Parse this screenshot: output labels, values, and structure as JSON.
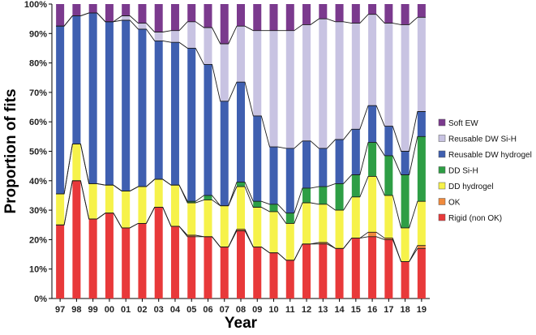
{
  "chart_data": {
    "type": "bar",
    "stacked": true,
    "normalized": true,
    "title": "",
    "xlabel": "Year",
    "ylabel": "Proportion of fits",
    "ylim": [
      0,
      100
    ],
    "y_ticks": [
      "0%",
      "10%",
      "20%",
      "30%",
      "40%",
      "50%",
      "60%",
      "70%",
      "80%",
      "90%",
      "100%"
    ],
    "categories": [
      "97",
      "98",
      "99",
      "00",
      "01",
      "02",
      "03",
      "04",
      "05",
      "06",
      "07",
      "08",
      "09",
      "10",
      "11",
      "12",
      "13",
      "14",
      "15",
      "16",
      "17",
      "18",
      "19"
    ],
    "legend_position": "right",
    "grid": false,
    "connector_lines": true,
    "series": [
      {
        "name": "Rigid (non OK)",
        "color": "#e8393a",
        "values": [
          25,
          40,
          27,
          29,
          24,
          25.5,
          31,
          24.5,
          21,
          21,
          17.5,
          23,
          17.5,
          15.5,
          13,
          18.5,
          18.5,
          17,
          20.5,
          21,
          20,
          12.5,
          17
        ]
      },
      {
        "name": "OK",
        "color": "#f08a3c",
        "values": [
          0,
          0,
          0,
          0,
          0,
          0,
          0,
          0,
          0.5,
          0,
          0,
          0.5,
          0,
          0,
          0,
          0,
          0.5,
          0,
          0,
          1.5,
          0.5,
          0,
          1
        ]
      },
      {
        "name": "DD hydrogel",
        "color": "#f6f24a",
        "values": [
          10.5,
          12.5,
          12,
          9.5,
          12.5,
          12.5,
          9.5,
          14,
          11,
          12.5,
          14,
          14.5,
          13.5,
          14,
          12.5,
          14,
          13,
          13,
          14,
          19,
          14.5,
          11.5,
          15
        ]
      },
      {
        "name": "DD Si-H",
        "color": "#2e9e45",
        "values": [
          0,
          0,
          0,
          0,
          0,
          0,
          0,
          0,
          0.5,
          1.5,
          0,
          1.5,
          2,
          2.5,
          3.5,
          5,
          6,
          9,
          7.5,
          11.5,
          13.5,
          18,
          22
        ]
      },
      {
        "name": "Reusable DW hydrogel",
        "color": "#3f5fb0",
        "values": [
          57,
          43.5,
          58,
          55.5,
          58,
          53.5,
          47,
          48.5,
          52,
          44.5,
          35.5,
          34,
          29,
          19.5,
          22,
          16,
          13,
          15,
          15.5,
          12.5,
          10,
          8,
          8.5
        ]
      },
      {
        "name": "Reusable DW Si-H",
        "color": "#c8c3e2",
        "values": [
          0,
          0,
          0,
          0,
          1.5,
          2,
          3,
          4,
          9,
          12.5,
          19.5,
          19,
          29,
          39.5,
          40,
          39.5,
          44,
          40,
          36,
          31,
          35,
          43,
          32
        ]
      },
      {
        "name": "Soft EW",
        "color": "#7b3a8e",
        "values": [
          7.5,
          4,
          3,
          6,
          4,
          6.5,
          9.5,
          9,
          6,
          8,
          13.5,
          7.5,
          9,
          9,
          9,
          7,
          5,
          6,
          6.5,
          3.5,
          6.5,
          7,
          4.5
        ]
      }
    ]
  }
}
